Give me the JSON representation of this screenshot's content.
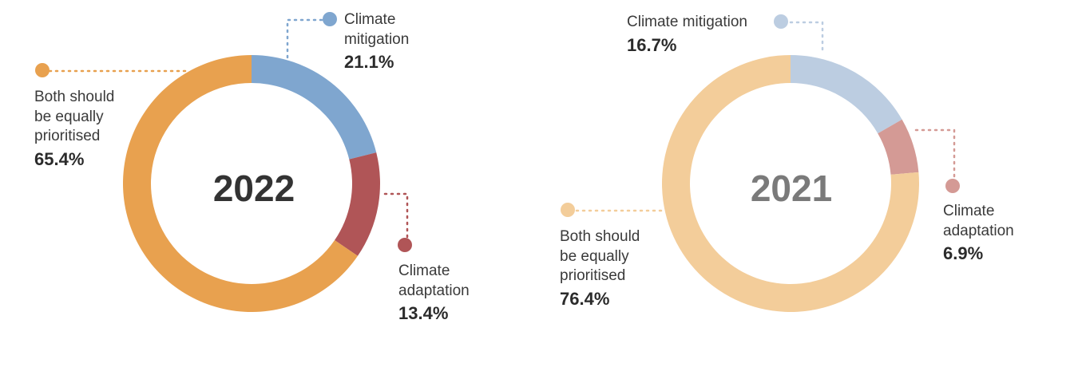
{
  "chart_data": [
    {
      "type": "pie",
      "variant": "donut",
      "center_label": "2022",
      "series": [
        {
          "name": "Climate mitigation",
          "value": 21.1,
          "label": "21.1%",
          "color": "#7fa6cf"
        },
        {
          "name": "Climate adaptation",
          "value": 13.4,
          "label": "13.4%",
          "color": "#b05557"
        },
        {
          "name": "Both should be equally prioritised",
          "value": 65.4,
          "label": "65.4%",
          "color": "#e8a14f"
        }
      ],
      "center_label_color": "#333333"
    },
    {
      "type": "pie",
      "variant": "donut",
      "center_label": "2021",
      "series": [
        {
          "name": "Climate mitigation",
          "value": 16.7,
          "label": "16.7%",
          "color": "#bccde1"
        },
        {
          "name": "Climate adaptation",
          "value": 6.9,
          "label": "6.9%",
          "color": "#d49a95"
        },
        {
          "name": "Both should be equally prioritised",
          "value": 76.4,
          "label": "76.4%",
          "color": "#f3cd9a"
        }
      ],
      "center_label_color": "#7a7a7a"
    }
  ],
  "labels": {
    "c2022": {
      "mitigation": {
        "line1": "Climate",
        "line2": "mitigation",
        "pct": "21.1%"
      },
      "adaptation": {
        "line1": "Climate",
        "line2": "adaptation",
        "pct": "13.4%"
      },
      "both": {
        "line1": "Both should",
        "line2": "be equally",
        "line3": "prioritised",
        "pct": "65.4%"
      }
    },
    "c2021": {
      "mitigation": {
        "line1": "Climate mitigation",
        "pct": "16.7%"
      },
      "adaptation": {
        "line1": "Climate",
        "line2": "adaptation",
        "pct": "6.9%"
      },
      "both": {
        "line1": "Both should",
        "line2": "be equally",
        "line3": "prioritised",
        "pct": "76.4%"
      }
    }
  }
}
